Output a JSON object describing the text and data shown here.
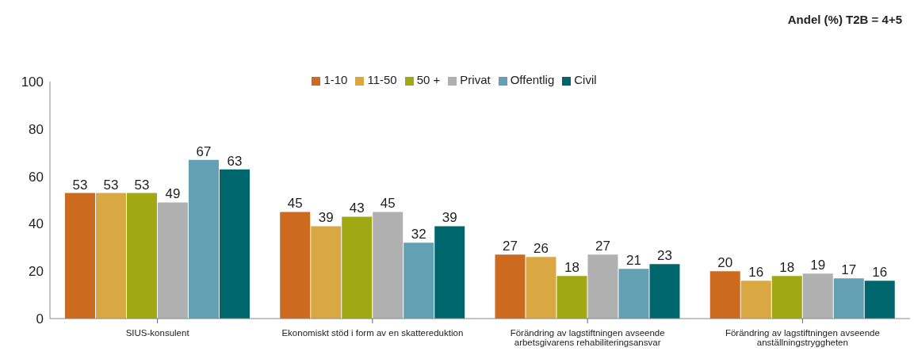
{
  "chart_data": {
    "type": "bar",
    "title": "Andel (%) T2B = 4+5",
    "categories": [
      "SIUS-konsulent",
      "Ekonomiskt stöd i form av en skattereduktion",
      "Förändring av lagstiftningen avseende arbetsgivarens rehabiliteringsansvar",
      "Förändring av lagstiftningen avseende anställningstryggheten"
    ],
    "series": [
      {
        "name": "1-10",
        "color": "#cc6a1f",
        "values": [
          53,
          45,
          27,
          20
        ]
      },
      {
        "name": "11-50",
        "color": "#d9a843",
        "values": [
          53,
          39,
          26,
          16
        ]
      },
      {
        "name": "50 +",
        "color": "#a0a814",
        "values": [
          53,
          43,
          18,
          18
        ]
      },
      {
        "name": "Privat",
        "color": "#b0b0b0",
        "values": [
          49,
          45,
          27,
          19
        ]
      },
      {
        "name": "Offentlig",
        "color": "#64a0b4",
        "values": [
          67,
          32,
          21,
          17
        ]
      },
      {
        "name": "Civil",
        "color": "#00666e",
        "values": [
          63,
          39,
          23,
          16
        ]
      }
    ],
    "ylim": [
      0,
      100
    ],
    "yticks": [
      0,
      20,
      40,
      60,
      80,
      100
    ],
    "legend": "top",
    "data_labels": true
  }
}
